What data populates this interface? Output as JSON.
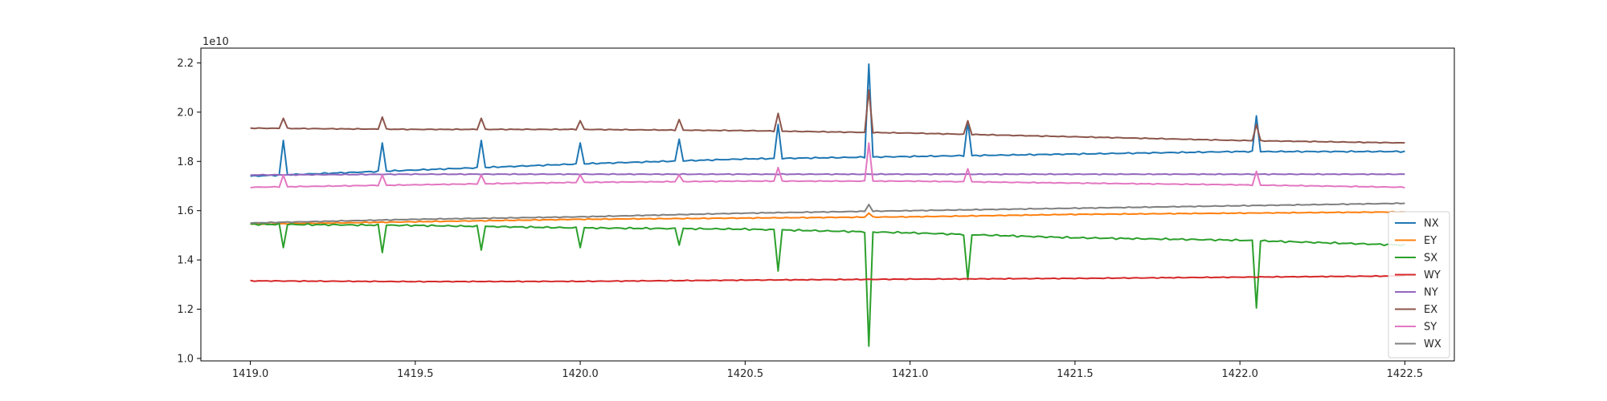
{
  "chart_data": {
    "type": "line",
    "title": "",
    "xlabel": "",
    "ylabel": "",
    "y_offset_text": "1e10",
    "xlim": [
      1418.85,
      1422.65
    ],
    "ylim": [
      0.99,
      2.26
    ],
    "x_ticks": [
      1419.0,
      1419.5,
      1420.0,
      1420.5,
      1421.0,
      1421.5,
      1422.0,
      1422.5
    ],
    "x_tick_labels": [
      "1419.0",
      "1419.5",
      "1420.0",
      "1420.5",
      "1421.0",
      "1421.5",
      "1422.0",
      "1422.5"
    ],
    "y_ticks": [
      1.0,
      1.2,
      1.4,
      1.6,
      1.8,
      2.0,
      2.2
    ],
    "y_tick_labels": [
      "1.0",
      "1.2",
      "1.4",
      "1.6",
      "1.8",
      "2.0",
      "2.2"
    ],
    "grid": false,
    "legend_position": "lower-right",
    "x_range": [
      1419.0,
      1422.5
    ],
    "step": 0.0125,
    "spike_x": [
      1419.1,
      1419.4,
      1419.7,
      1420.0,
      1420.3,
      1420.6,
      1420.875,
      1421.175,
      1422.05
    ],
    "series": [
      {
        "name": "NX",
        "color": "#1f77b4",
        "trend": [
          [
            1419.0,
            1.74
          ],
          [
            1419.5,
            1.765
          ],
          [
            1420.0,
            1.79
          ],
          [
            1420.5,
            1.81
          ],
          [
            1421.0,
            1.82
          ],
          [
            1421.5,
            1.83
          ],
          [
            1422.0,
            1.84
          ],
          [
            1422.5,
            1.84
          ]
        ],
        "spikes": [
          [
            1419.1,
            1.885
          ],
          [
            1419.4,
            1.875
          ],
          [
            1419.7,
            1.885
          ],
          [
            1420.0,
            1.875
          ],
          [
            1420.3,
            1.89
          ],
          [
            1420.6,
            1.95
          ],
          [
            1420.875,
            2.195
          ],
          [
            1421.175,
            1.96
          ],
          [
            1422.05,
            1.985
          ]
        ],
        "noise": 0.003
      },
      {
        "name": "EY",
        "color": "#ff7f0e",
        "trend": [
          [
            1419.0,
            1.545
          ],
          [
            1419.5,
            1.555
          ],
          [
            1420.0,
            1.565
          ],
          [
            1420.5,
            1.57
          ],
          [
            1421.0,
            1.575
          ],
          [
            1421.5,
            1.585
          ],
          [
            1422.0,
            1.59
          ],
          [
            1422.5,
            1.595
          ]
        ],
        "spikes": [
          [
            1420.875,
            1.59
          ]
        ],
        "noise": 0.002
      },
      {
        "name": "SX",
        "color": "#2ca02c",
        "trend": [
          [
            1419.0,
            1.545
          ],
          [
            1419.5,
            1.54
          ],
          [
            1420.0,
            1.53
          ],
          [
            1420.5,
            1.525
          ],
          [
            1421.0,
            1.51
          ],
          [
            1421.5,
            1.49
          ],
          [
            1422.0,
            1.48
          ],
          [
            1422.5,
            1.46
          ]
        ],
        "spikes": [
          [
            1419.1,
            1.45
          ],
          [
            1419.4,
            1.43
          ],
          [
            1419.7,
            1.44
          ],
          [
            1420.0,
            1.45
          ],
          [
            1420.3,
            1.46
          ],
          [
            1420.6,
            1.355
          ],
          [
            1420.875,
            1.05
          ],
          [
            1421.175,
            1.32
          ],
          [
            1422.05,
            1.205
          ]
        ],
        "noise": 0.004
      },
      {
        "name": "WY",
        "color": "#d62728",
        "trend": [
          [
            1419.0,
            1.315
          ],
          [
            1419.5,
            1.312
          ],
          [
            1420.0,
            1.313
          ],
          [
            1420.5,
            1.318
          ],
          [
            1421.0,
            1.322
          ],
          [
            1421.5,
            1.325
          ],
          [
            1422.0,
            1.33
          ],
          [
            1422.5,
            1.335
          ]
        ],
        "spikes": [],
        "noise": 0.002
      },
      {
        "name": "NY",
        "color": "#9467bd",
        "trend": [
          [
            1419.0,
            1.745
          ],
          [
            1419.5,
            1.748
          ],
          [
            1420.0,
            1.748
          ],
          [
            1420.5,
            1.748
          ],
          [
            1421.0,
            1.748
          ],
          [
            1421.5,
            1.748
          ],
          [
            1422.0,
            1.748
          ],
          [
            1422.5,
            1.748
          ]
        ],
        "spikes": [],
        "noise": 0.002
      },
      {
        "name": "EX",
        "color": "#8c564b",
        "trend": [
          [
            1419.0,
            1.935
          ],
          [
            1419.5,
            1.93
          ],
          [
            1420.0,
            1.93
          ],
          [
            1420.5,
            1.925
          ],
          [
            1421.0,
            1.915
          ],
          [
            1421.5,
            1.9
          ],
          [
            1422.0,
            1.885
          ],
          [
            1422.5,
            1.875
          ]
        ],
        "spikes": [
          [
            1419.1,
            1.975
          ],
          [
            1419.4,
            1.98
          ],
          [
            1419.7,
            1.975
          ],
          [
            1420.0,
            1.965
          ],
          [
            1420.3,
            1.97
          ],
          [
            1420.6,
            1.995
          ],
          [
            1420.875,
            2.09
          ],
          [
            1421.175,
            1.965
          ],
          [
            1422.05,
            1.95
          ]
        ],
        "noise": 0.002
      },
      {
        "name": "SY",
        "color": "#e377c2",
        "trend": [
          [
            1419.0,
            1.695
          ],
          [
            1419.5,
            1.705
          ],
          [
            1420.0,
            1.715
          ],
          [
            1420.5,
            1.72
          ],
          [
            1421.0,
            1.72
          ],
          [
            1421.5,
            1.712
          ],
          [
            1422.0,
            1.705
          ],
          [
            1422.5,
            1.695
          ]
        ],
        "spikes": [
          [
            1419.1,
            1.745
          ],
          [
            1419.4,
            1.745
          ],
          [
            1419.7,
            1.745
          ],
          [
            1420.0,
            1.745
          ],
          [
            1420.3,
            1.745
          ],
          [
            1420.6,
            1.775
          ],
          [
            1420.875,
            1.875
          ],
          [
            1421.175,
            1.77
          ],
          [
            1422.05,
            1.76
          ]
        ],
        "noise": 0.002
      },
      {
        "name": "WX",
        "color": "#7f7f7f",
        "trend": [
          [
            1419.0,
            1.55
          ],
          [
            1419.5,
            1.565
          ],
          [
            1420.0,
            1.575
          ],
          [
            1420.5,
            1.59
          ],
          [
            1421.0,
            1.6
          ],
          [
            1421.5,
            1.61
          ],
          [
            1422.0,
            1.62
          ],
          [
            1422.5,
            1.63
          ]
        ],
        "spikes": [
          [
            1420.875,
            1.625
          ]
        ],
        "noise": 0.002
      }
    ]
  }
}
